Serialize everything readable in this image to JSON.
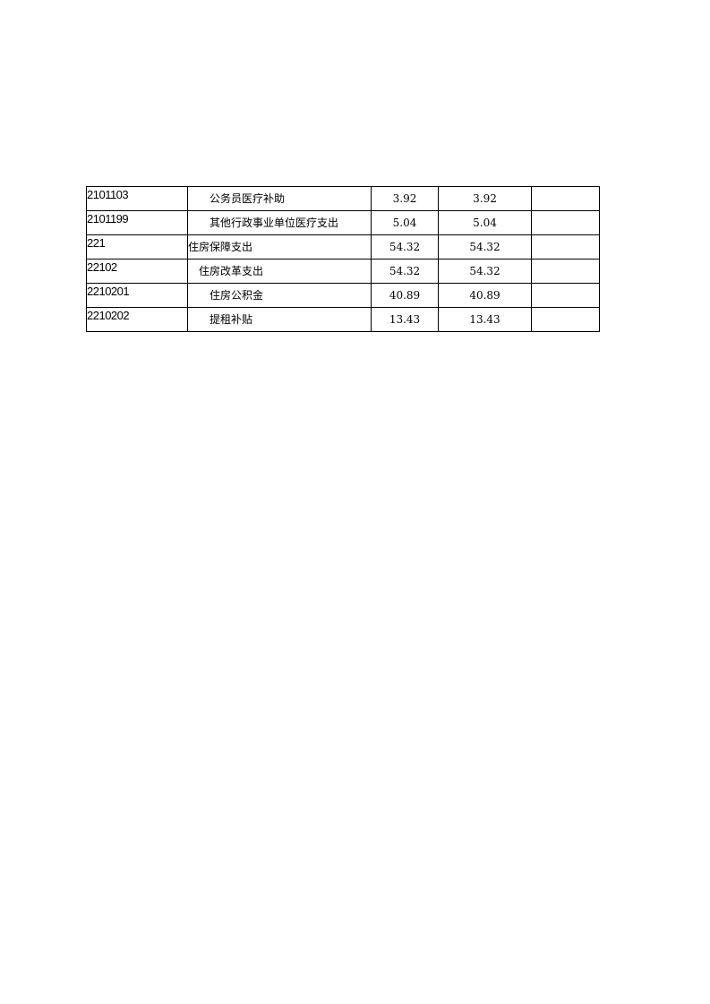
{
  "table": {
    "rows": [
      {
        "code": "2101103",
        "name": "公务员医疗补助",
        "level": 2,
        "v1": "3.92",
        "v2": "3.92",
        "v3": ""
      },
      {
        "code": "2101199",
        "name": "其他行政事业单位医疗支出",
        "level": 2,
        "v1": "5.04",
        "v2": "5.04",
        "v3": ""
      },
      {
        "code": "221",
        "name": "住房保障支出",
        "level": 0,
        "v1": "54.32",
        "v2": "54.32",
        "v3": ""
      },
      {
        "code": "22102",
        "name": "住房改革支出",
        "level": 1,
        "v1": "54.32",
        "v2": "54.32",
        "v3": ""
      },
      {
        "code": "2210201",
        "name": "住房公积金",
        "level": 2,
        "v1": "40.89",
        "v2": "40.89",
        "v3": ""
      },
      {
        "code": "2210202",
        "name": "提租补贴",
        "level": 2,
        "v1": "13.43",
        "v2": "13.43",
        "v3": ""
      }
    ]
  }
}
